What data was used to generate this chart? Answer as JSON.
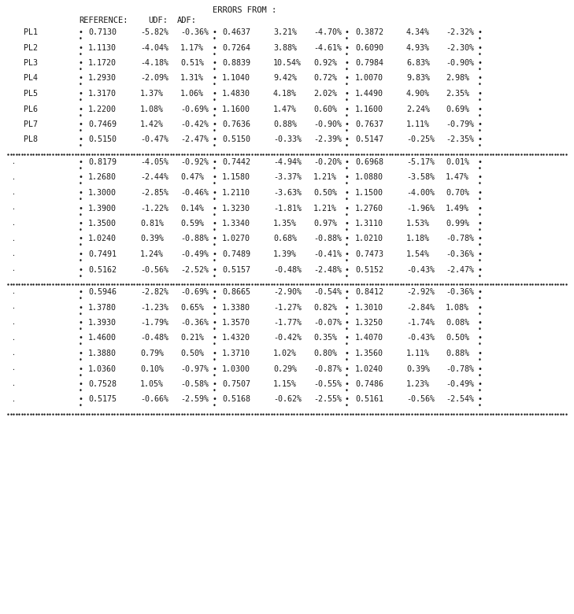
{
  "background": "#ffffff",
  "text_color": "#1a1a1a",
  "section1": {
    "rows": [
      {
        "label": "PL1",
        "col1": "0.7130",
        "e1": "-5.82%",
        "e2": "-0.36%",
        "col2": "0.4637",
        "e3": "3.21%",
        "e4": "-4.70%",
        "col3": "0.3872",
        "e5": "4.34%",
        "e6": "-2.32%"
      },
      {
        "label": "PL2",
        "col1": "1.1130",
        "e1": "-4.04%",
        "e2": "1.17%",
        "col2": "0.7264",
        "e3": "3.88%",
        "e4": "-4.61%",
        "col3": "0.6090",
        "e5": "4.93%",
        "e6": "-2.30%"
      },
      {
        "label": "PL3",
        "col1": "1.1720",
        "e1": "-4.18%",
        "e2": "0.51%",
        "col2": "0.8839",
        "e3": "10.54%",
        "e4": "0.92%",
        "col3": "0.7984",
        "e5": "6.83%",
        "e6": "-0.90%"
      },
      {
        "label": "PL4",
        "col1": "1.2930",
        "e1": "-2.09%",
        "e2": "1.31%",
        "col2": "1.1040",
        "e3": "9.42%",
        "e4": "0.72%",
        "col3": "1.0070",
        "e5": "9.83%",
        "e6": "2.98%"
      },
      {
        "label": "PL5",
        "col1": "1.3170",
        "e1": "1.37%",
        "e2": "1.06%",
        "col2": "1.4830",
        "e3": "4.18%",
        "e4": "2.02%",
        "col3": "1.4490",
        "e5": "4.90%",
        "e6": "2.35%"
      },
      {
        "label": "PL6",
        "col1": "1.2200",
        "e1": "1.08%",
        "e2": "-0.69%",
        "col2": "1.1600",
        "e3": "1.47%",
        "e4": "0.60%",
        "col3": "1.1600",
        "e5": "2.24%",
        "e6": "0.69%"
      },
      {
        "label": "PL7",
        "col1": "0.7469",
        "e1": "1.42%",
        "e2": "-0.42%",
        "col2": "0.7636",
        "e3": "0.88%",
        "e4": "-0.90%",
        "col3": "0.7637",
        "e5": "1.11%",
        "e6": "-0.79%"
      },
      {
        "label": "PL8",
        "col1": "0.5150",
        "e1": "-0.47%",
        "e2": "-2.47%",
        "col2": "0.5150",
        "e3": "-0.33%",
        "e4": "-2.39%",
        "col3": "0.5147",
        "e5": "-0.25%",
        "e6": "-2.35%"
      }
    ]
  },
  "section2": {
    "rows": [
      {
        "col1": "0.8179",
        "e1": "-4.05%",
        "e2": "-0.92%",
        "col2": "0.7442",
        "e3": "-4.94%",
        "e4": "-0.20%",
        "col3": "0.6968",
        "e5": "-5.17%",
        "e6": "0.01%"
      },
      {
        "col1": "1.2680",
        "e1": "-2.44%",
        "e2": "0.47%",
        "col2": "1.1580",
        "e3": "-3.37%",
        "e4": "1.21%",
        "col3": "1.0880",
        "e5": "-3.58%",
        "e6": "1.47%"
      },
      {
        "col1": "1.3000",
        "e1": "-2.85%",
        "e2": "-0.46%",
        "col2": "1.2110",
        "e3": "-3.63%",
        "e4": "0.50%",
        "col3": "1.1500",
        "e5": "-4.00%",
        "e6": "0.70%"
      },
      {
        "col1": "1.3900",
        "e1": "-1.22%",
        "e2": "0.14%",
        "col2": "1.3230",
        "e3": "-1.81%",
        "e4": "1.21%",
        "col3": "1.2760",
        "e5": "-1.96%",
        "e6": "1.49%"
      },
      {
        "col1": "1.3500",
        "e1": "0.81%",
        "e2": "0.59%",
        "col2": "1.3340",
        "e3": "1.35%",
        "e4": "0.97%",
        "col3": "1.3110",
        "e5": "1.53%",
        "e6": "0.99%"
      },
      {
        "col1": "1.0240",
        "e1": "0.39%",
        "e2": "-0.88%",
        "col2": "1.0270",
        "e3": "0.68%",
        "e4": "-0.88%",
        "col3": "1.0210",
        "e5": "1.18%",
        "e6": "-0.78%"
      },
      {
        "col1": "0.7491",
        "e1": "1.24%",
        "e2": "-0.49%",
        "col2": "0.7489",
        "e3": "1.39%",
        "e4": "-0.41%",
        "col3": "0.7473",
        "e5": "1.54%",
        "e6": "-0.36%"
      },
      {
        "col1": "0.5162",
        "e1": "-0.56%",
        "e2": "-2.52%",
        "col2": "0.5157",
        "e3": "-0.48%",
        "e4": "-2.48%",
        "col3": "0.5152",
        "e5": "-0.43%",
        "e6": "-2.47%"
      }
    ]
  },
  "section3": {
    "rows": [
      {
        "col1": "0.5946",
        "e1": "-2.82%",
        "e2": "-0.69%",
        "col2": "0.8665",
        "e3": "-2.90%",
        "e4": "-0.54%",
        "col3": "0.8412",
        "e5": "-2.92%",
        "e6": "-0.36%"
      },
      {
        "col1": "1.3780",
        "e1": "-1.23%",
        "e2": "0.65%",
        "col2": "1.3380",
        "e3": "-1.27%",
        "e4": "0.82%",
        "col3": "1.3010",
        "e5": "-2.84%",
        "e6": "1.08%"
      },
      {
        "col1": "1.3930",
        "e1": "-1.79%",
        "e2": "-0.36%",
        "col2": "1.3570",
        "e3": "-1.77%",
        "e4": "-0.07%",
        "col3": "1.3250",
        "e5": "-1.74%",
        "e6": "0.08%"
      },
      {
        "col1": "1.4600",
        "e1": "-0.48%",
        "e2": "0.21%",
        "col2": "1.4320",
        "e3": "-0.42%",
        "e4": "0.35%",
        "col3": "1.4070",
        "e5": "-0.43%",
        "e6": "0.50%"
      },
      {
        "col1": "1.3880",
        "e1": "0.79%",
        "e2": "0.50%",
        "col2": "1.3710",
        "e3": "1.02%",
        "e4": "0.80%",
        "col3": "1.3560",
        "e5": "1.11%",
        "e6": "0.88%"
      },
      {
        "col1": "1.0360",
        "e1": "0.10%",
        "e2": "-0.97%",
        "col2": "1.0300",
        "e3": "0.29%",
        "e4": "-0.87%",
        "col3": "1.0240",
        "e5": "0.39%",
        "e6": "-0.78%"
      },
      {
        "col1": "0.7528",
        "e1": "1.05%",
        "e2": "-0.58%",
        "col2": "0.7507",
        "e3": "1.15%",
        "e4": "-0.55%",
        "col3": "0.7486",
        "e5": "1.23%",
        "e6": "-0.49%"
      },
      {
        "col1": "0.5175",
        "e1": "-0.66%",
        "e2": "-2.59%",
        "col2": "0.5168",
        "e3": "-0.62%",
        "e4": "-2.55%",
        "col3": "0.5161",
        "e5": "-0.56%",
        "e6": "-2.54%"
      }
    ]
  }
}
